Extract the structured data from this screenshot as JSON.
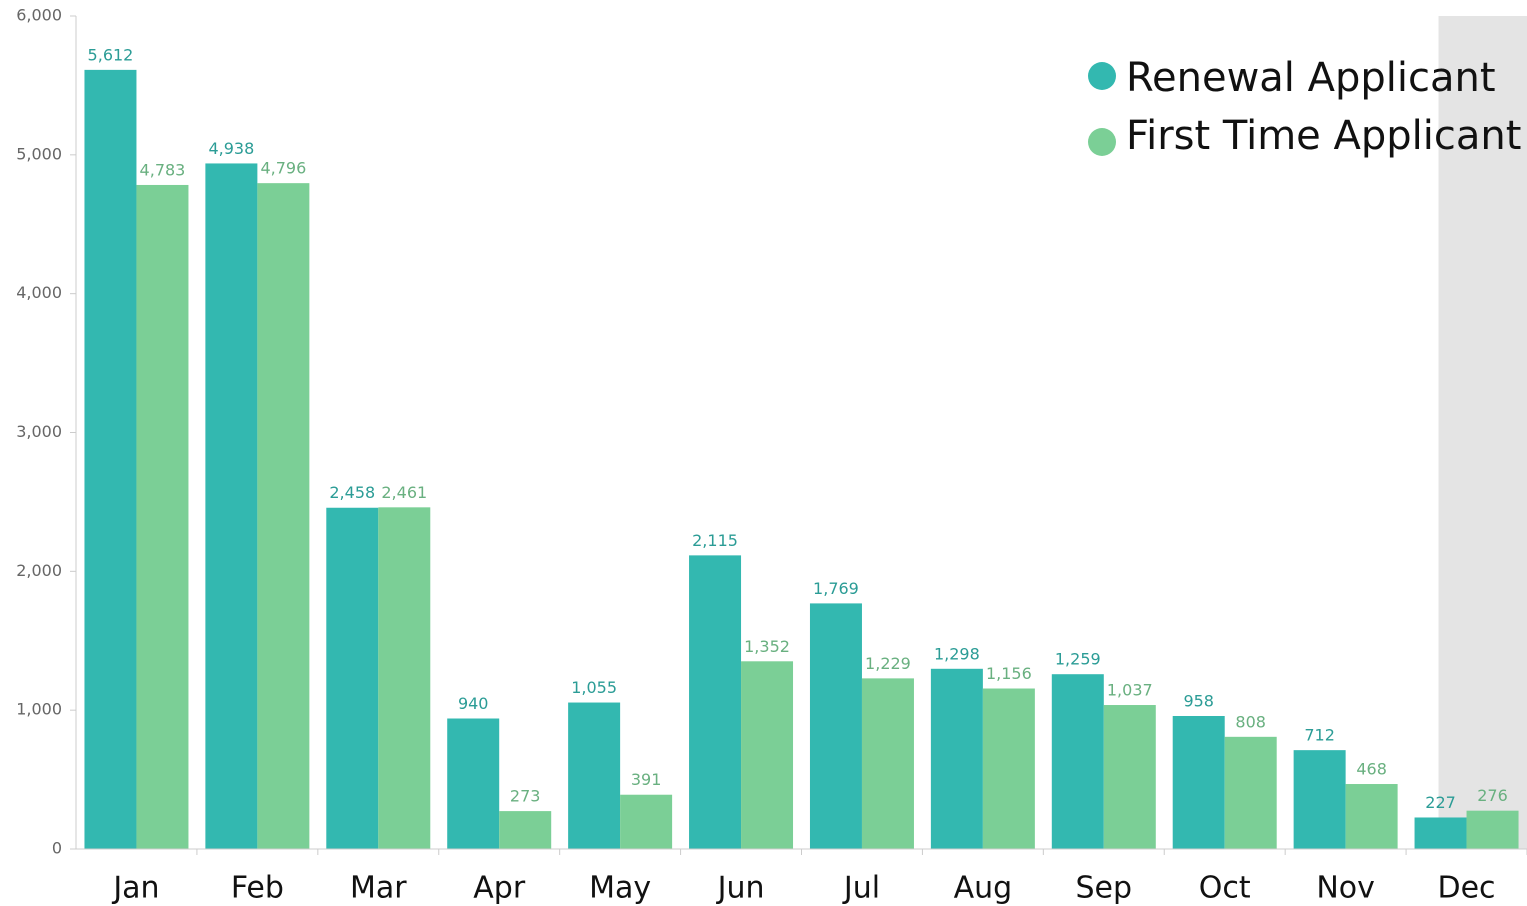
{
  "chart_data": {
    "type": "bar",
    "categories": [
      "Jan",
      "Feb",
      "Mar",
      "Apr",
      "May",
      "Jun",
      "Jul",
      "Aug",
      "Sep",
      "Oct",
      "Nov",
      "Dec"
    ],
    "series": [
      {
        "name": "Renewal Applicant",
        "color": "#33b8b0",
        "values": [
          5612,
          4938,
          2458,
          940,
          1055,
          2115,
          1769,
          1298,
          1259,
          958,
          712,
          227
        ],
        "value_labels": [
          "5,612",
          "4,938",
          "2,458",
          "940",
          "1,055",
          "2,115",
          "1,769",
          "1,298",
          "1,259",
          "958",
          "712",
          "227"
        ]
      },
      {
        "name": "First Time Applicant",
        "color": "#7bcf96",
        "values": [
          4783,
          4796,
          2461,
          273,
          391,
          1352,
          1229,
          1156,
          1037,
          808,
          468,
          276
        ],
        "value_labels": [
          "4,783",
          "4,796",
          "2,461",
          "273",
          "391",
          "1,352",
          "1,229",
          "1,156",
          "1,037",
          "808",
          "468",
          "276"
        ]
      }
    ],
    "ylim": [
      0,
      6000
    ],
    "yticks": [
      0,
      {
        "value": 1000,
        "label": "1,000"
      },
      {
        "value": 2000,
        "label": "2,000"
      },
      {
        "value": 3000,
        "label": "3,000"
      },
      {
        "value": 4000,
        "label": "4,000"
      },
      {
        "value": 5000,
        "label": "5,000"
      },
      {
        "value": 6000,
        "label": "6,000"
      }
    ],
    "legend": "top-right"
  }
}
